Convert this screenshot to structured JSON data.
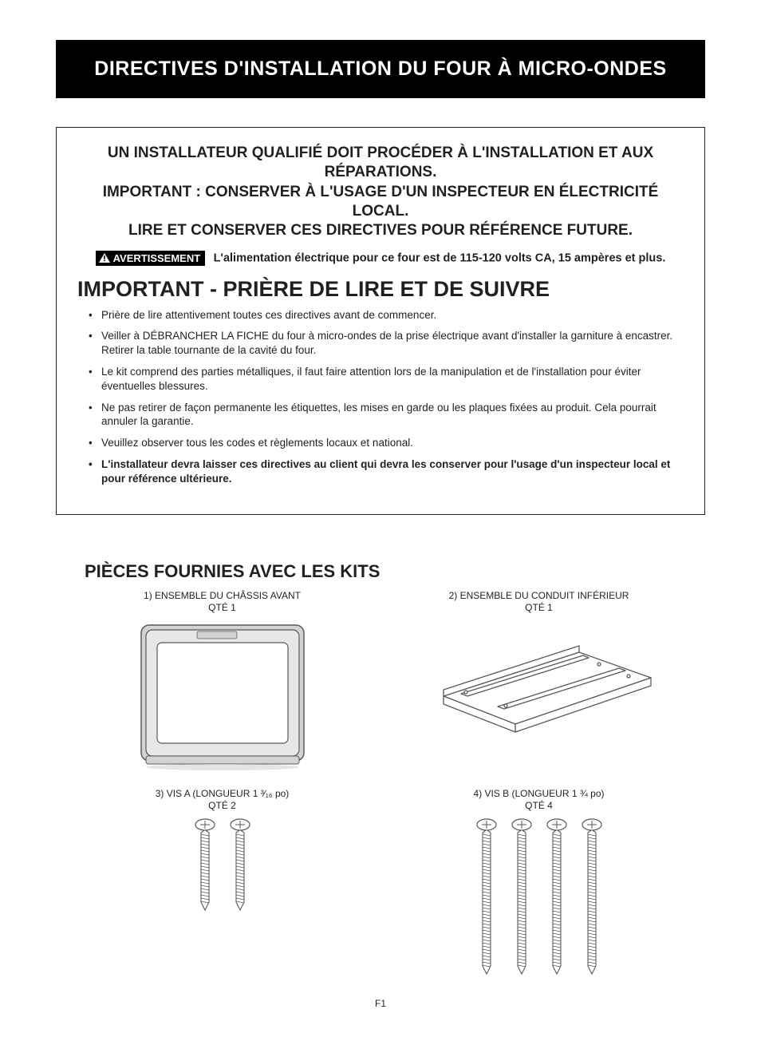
{
  "colors": {
    "page_bg": "#ffffff",
    "text": "#231f20",
    "banner_bg": "#000000",
    "banner_text": "#ffffff",
    "frame_border": "#231f20",
    "diagram_stroke": "#58595b",
    "diagram_fill_light": "#e6e7e8",
    "diagram_fill_mid": "#d1d3d4",
    "diagram_fill_dark": "#bcbec0"
  },
  "typography": {
    "banner_title_pt": 25,
    "notice_head_pt": 19,
    "important_heading_pt": 27,
    "body_pt": 13.5,
    "parts_heading_pt": 22,
    "part_label_pt": 12,
    "page_num_pt": 12
  },
  "banner": {
    "title": "DIRECTIVES D'INSTALLATION DU FOUR À MICRO-ONDES"
  },
  "notice": {
    "line1": "UN INSTALLATEUR QUALIFIÉ DOIT PROCÉDER À L'INSTALLATION ET AUX RÉPARATIONS.",
    "line2": "IMPORTANT : CONSERVER À L'USAGE D'UN INSPECTEUR EN ÉLECTRICITÉ LOCAL.",
    "line3": "LIRE ET CONSERVER CES DIRECTIVES POUR RÉFÉRENCE FUTURE.",
    "warn_badge": "AVERTISSEMENT",
    "warn_text": "L'alimentation électrique pour ce four est de 115-120 volts CA, 15 ampères et plus."
  },
  "important": {
    "heading": "IMPORTANT - PRIÈRE DE LIRE ET DE SUIVRE",
    "bullets": [
      "Prière de lire attentivement toutes ces directives avant de commencer.",
      "Veiller à DÉBRANCHER LA FICHE du four à micro-ondes de la prise électrique avant d'installer la garniture à encastrer. Retirer la table tournante de la cavité du four.",
      "Le kit comprend des parties métalliques, il faut faire attention lors de la manipulation et de l'installation pour éviter éventuelles blessures.",
      "Ne pas retirer de façon permanente les étiquettes, les mises en garde ou les plaques fixées au produit. Cela pourrait annuler la garantie.",
      "Veuillez observer tous les codes et règlements locaux et national.",
      "L'installateur devra laisser ces directives au client qui devra les conserver pour l'usage d'un inspecteur local et pour référence ultérieure."
    ],
    "bullets_bold_index": 5
  },
  "parts": {
    "heading": "PIÈCES FOURNIES AVEC LES KITS",
    "items": [
      {
        "label": "1) ENSEMBLE DU CHÂSSIS AVANT",
        "qty": "QTÉ 1",
        "diagram": "front-frame"
      },
      {
        "label": "2) ENSEMBLE DU CONDUIT INFÉRIEUR",
        "qty": "QTÉ 1",
        "diagram": "lower-duct"
      },
      {
        "label": "3) VIS A (LONGUEUR 1 ³⁄₁₆ po)",
        "qty": "QTÉ 2",
        "diagram": "screws-short",
        "count": 2,
        "screw_len": 95
      },
      {
        "label": "4) VIS B (LONGUEUR 1 ¾ po)",
        "qty": "QTÉ 4",
        "diagram": "screws-long",
        "count": 4,
        "screw_len": 175
      }
    ]
  },
  "page_number": "F1"
}
